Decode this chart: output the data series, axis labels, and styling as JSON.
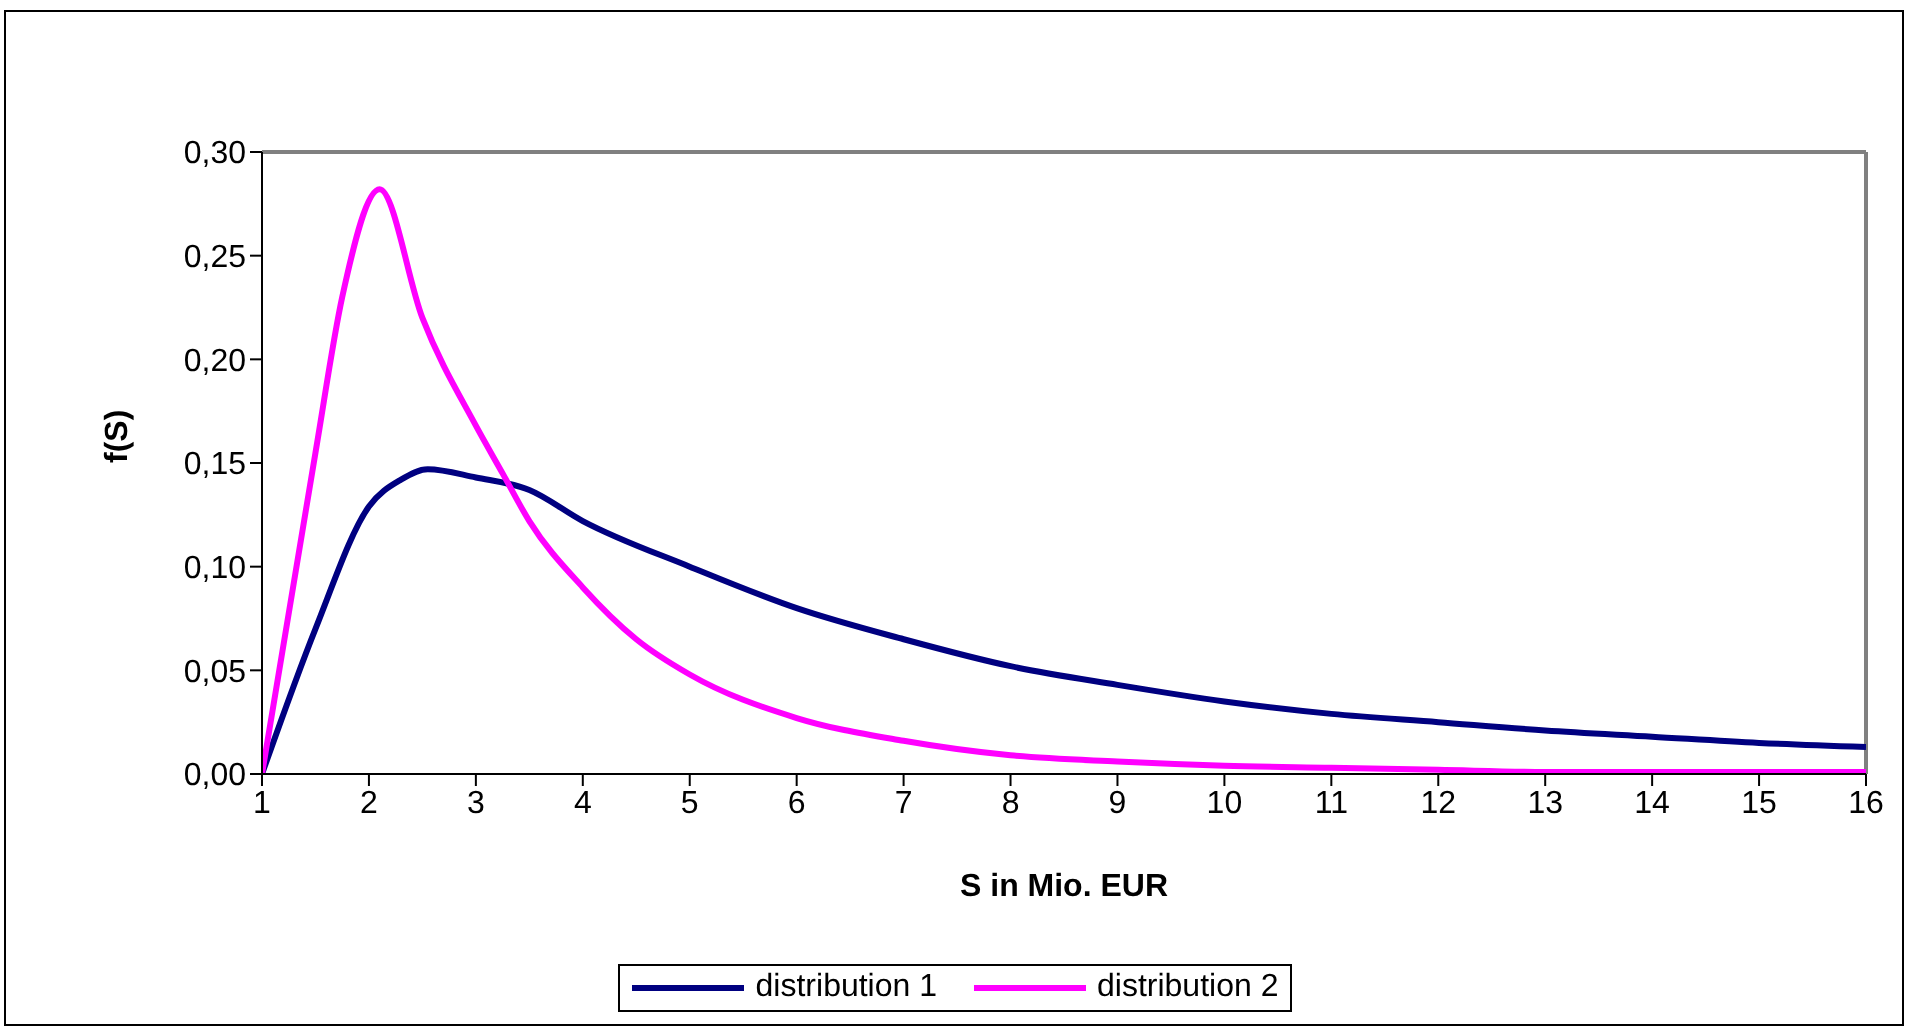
{
  "chart_data": {
    "type": "line",
    "xlabel": "S in Mio. EUR",
    "ylabel": "f(S)",
    "xlim": [
      1,
      16
    ],
    "xticks": [
      1,
      2,
      3,
      4,
      5,
      6,
      7,
      8,
      9,
      10,
      11,
      12,
      13,
      14,
      15,
      16
    ],
    "ylim": [
      0,
      0.3
    ],
    "yticks": [
      {
        "value": 0,
        "label": "0,00"
      },
      {
        "value": 0.05,
        "label": "0,05"
      },
      {
        "value": 0.1,
        "label": "0,10"
      },
      {
        "value": 0.15,
        "label": "0,15"
      },
      {
        "value": 0.2,
        "label": "0,20"
      },
      {
        "value": 0.25,
        "label": "0,25"
      },
      {
        "value": 0.3,
        "label": "0,30"
      }
    ],
    "legend": "bottom",
    "marker": "none",
    "line_style": "solid",
    "series": [
      {
        "name": "distribution 1",
        "color": "#000080",
        "x": [
          1,
          1.5,
          2,
          2.3,
          2.55,
          3,
          3.5,
          4,
          5,
          6,
          7,
          8,
          9,
          10,
          11,
          12,
          13,
          14,
          15,
          16
        ],
        "values": [
          0,
          0.07,
          0.129,
          0.142,
          0.147,
          0.143,
          0.137,
          0.122,
          0.1,
          0.08,
          0.065,
          0.052,
          0.043,
          0.035,
          0.029,
          0.025,
          0.021,
          0.018,
          0.015,
          0.013
        ]
      },
      {
        "name": "distribution 2",
        "color": "#ff00ff",
        "x": [
          1,
          1.5,
          1.75,
          2.1,
          2.5,
          3,
          3.25,
          3.5,
          4,
          4.5,
          5,
          6,
          7,
          8,
          9,
          10,
          11,
          12,
          13,
          14,
          15,
          16
        ],
        "values": [
          0,
          0.155,
          0.23,
          0.282,
          0.22,
          0.168,
          0.145,
          0.122,
          0.09,
          0.065,
          0.048,
          0.027,
          0.016,
          0.009,
          0.006,
          0.004,
          0.003,
          0.002,
          0.001,
          0.001,
          0.001,
          0.001
        ]
      }
    ]
  }
}
